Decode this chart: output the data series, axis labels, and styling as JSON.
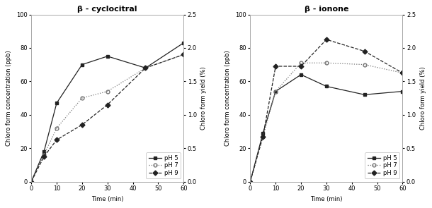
{
  "left_title": "β - cyclocitral",
  "right_title": "β - ionone",
  "xlabel": "Time (min)",
  "ylabel_left": "Chloro form concentration (ppb)",
  "ylabel_right": "Chloro form yield (%)",
  "time": [
    0,
    5,
    10,
    20,
    30,
    45,
    60
  ],
  "left_pH5": [
    0,
    18,
    47,
    70,
    75,
    68,
    83
  ],
  "left_pH7": [
    0,
    16,
    32,
    50,
    54,
    68,
    76
  ],
  "left_pH9": [
    0,
    15,
    25,
    34,
    46,
    68,
    76
  ],
  "right_pH5": [
    0,
    29,
    54,
    64,
    57,
    52,
    54
  ],
  "right_pH7": [
    0,
    27,
    54,
    71,
    71,
    70,
    65
  ],
  "right_pH9": [
    0,
    27,
    69,
    69,
    85,
    78,
    65
  ],
  "ylim_left": [
    0,
    100
  ],
  "ylim_right": [
    0,
    2.5
  ],
  "yticks_left": [
    0,
    20,
    40,
    60,
    80,
    100
  ],
  "yticks_right": [
    0.0,
    0.5,
    1.0,
    1.5,
    2.0,
    2.5
  ],
  "xticks": [
    0,
    10,
    20,
    30,
    40,
    50,
    60
  ],
  "color_pH5": "#222222",
  "color_pH7": "#777777",
  "color_pH9": "#222222",
  "bg_color": "#ffffff",
  "spine_color": "#aaaaaa",
  "title_fontsize": 8,
  "label_fontsize": 6,
  "tick_fontsize": 6,
  "legend_fontsize": 6
}
